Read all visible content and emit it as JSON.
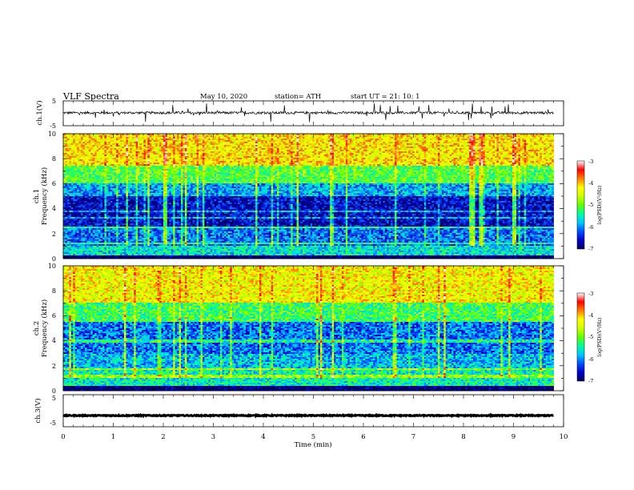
{
  "header": {
    "title": "VLF  Spectra",
    "date": "May 10, 2020",
    "station": "station= ATH",
    "start": "start  UT  =    21: 10: 1"
  },
  "axes": {
    "xlabel": "Time  (min)",
    "x_ticks": [
      "0",
      "1",
      "2",
      "3",
      "4",
      "5",
      "6",
      "7",
      "8",
      "9",
      "10"
    ],
    "ch1_label": "ch.1(V)",
    "ch3_label": "ch.3(V)",
    "volt_ticks": [
      "5",
      "-5"
    ],
    "spec1_label_a": "ch.1",
    "spec1_label_b": "Frequency  (kHz)",
    "spec2_label_a": "ch.2",
    "spec2_label_b": "Frequency  (kHz)",
    "freq_ticks": [
      "0",
      "2",
      "4",
      "6",
      "8",
      "10"
    ]
  },
  "colorbar": {
    "label": "log(PSD)(V²/Hz)",
    "ticks": [
      "-3",
      "-4",
      "-5",
      "-6",
      "-7"
    ],
    "colors": [
      "#000060",
      "#0000c8",
      "#0050ff",
      "#00c8ff",
      "#00ffa0",
      "#60ff00",
      "#d0ff00",
      "#ffff00",
      "#ff8000",
      "#ff0000",
      "#ffffff"
    ]
  },
  "chart_data": [
    {
      "type": "line",
      "title": "",
      "ylabel": "ch.1(V)",
      "xlabel": "Time  (min)",
      "xlim": [
        0,
        10
      ],
      "ylim": [
        -5,
        5
      ],
      "series": [
        {
          "x_range": [
            0,
            9.8
          ],
          "baseline": 0.2,
          "noise_amplitude": 1.0,
          "spike_amplitude": 3.5
        }
      ]
    },
    {
      "type": "heatmap",
      "ylabel": "Frequency  (kHz)",
      "channel": "ch.1",
      "xlim": [
        0,
        10
      ],
      "ylim": [
        0,
        10
      ],
      "clim": [
        -7,
        -3
      ],
      "x_extent": [
        0,
        9.8
      ],
      "bands": [
        {
          "f_range": [
            7.5,
            10
          ],
          "level": -4.2
        },
        {
          "f_range": [
            6.0,
            7.5
          ],
          "level": -5.1
        },
        {
          "f_range": [
            5.0,
            6.0
          ],
          "level": -5.9
        },
        {
          "f_range": [
            2.6,
            5.0
          ],
          "level": -6.6
        },
        {
          "f_range": [
            1.0,
            2.6
          ],
          "level": -6.1
        },
        {
          "f_range": [
            0.3,
            1.0
          ],
          "level": -5.6
        },
        {
          "f_range": [
            0,
            0.3
          ],
          "level": -7.0
        }
      ]
    },
    {
      "type": "heatmap",
      "ylabel": "Frequency  (kHz)",
      "channel": "ch.2",
      "xlim": [
        0,
        10
      ],
      "ylim": [
        0,
        10
      ],
      "clim": [
        -7,
        -3
      ],
      "x_extent": [
        0,
        9.8
      ],
      "bands": [
        {
          "f_range": [
            7.0,
            10
          ],
          "level": -4.3
        },
        {
          "f_range": [
            5.5,
            7.0
          ],
          "level": -5.2
        },
        {
          "f_range": [
            3.0,
            5.5
          ],
          "level": -6.1
        },
        {
          "f_range": [
            1.8,
            3.0
          ],
          "level": -5.8
        },
        {
          "f_range": [
            0.4,
            1.8
          ],
          "level": -5.5
        },
        {
          "f_range": [
            0,
            0.4
          ],
          "level": -7.0
        }
      ]
    },
    {
      "type": "line",
      "ylabel": "ch.3(V)",
      "xlim": [
        0,
        10
      ],
      "ylim": [
        -5,
        5
      ],
      "series": [
        {
          "x_range": [
            0,
            9.8
          ],
          "baseline": -1.5,
          "noise_amplitude": 0.3
        }
      ]
    }
  ]
}
